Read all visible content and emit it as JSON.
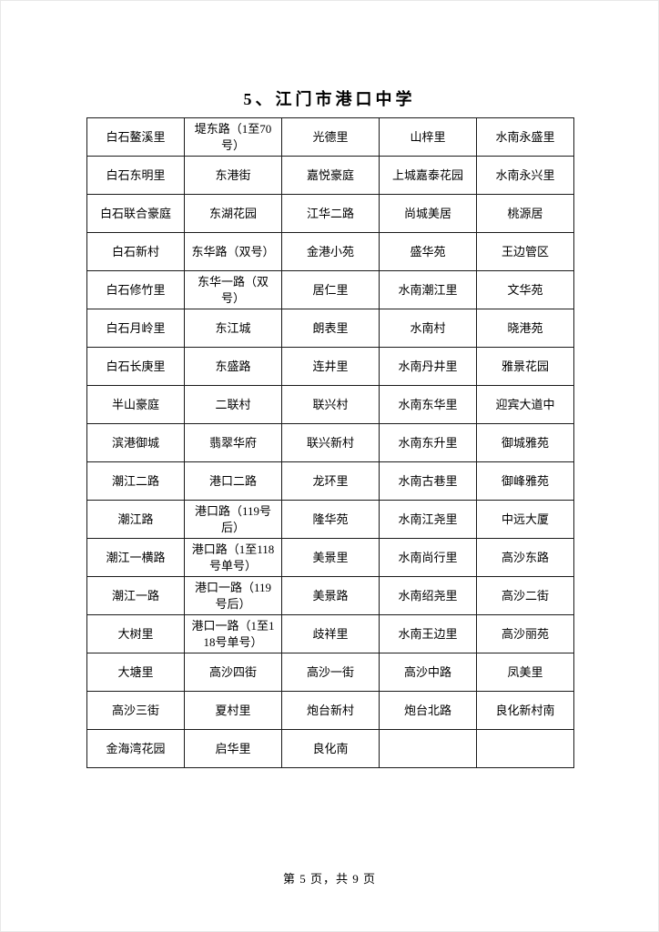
{
  "page": {
    "title": "5、江门市港口中学",
    "footer": "第 5 页，共 9 页"
  },
  "table": {
    "rows": [
      [
        "白石鳌溪里",
        "堤东路（1至70号）",
        "光德里",
        "山梓里",
        "水南永盛里"
      ],
      [
        "白石东明里",
        "东港街",
        "嘉悦豪庭",
        "上城嘉泰花园",
        "水南永兴里"
      ],
      [
        "白石联合豪庭",
        "东湖花园",
        "江华二路",
        "尚城美居",
        "桃源居"
      ],
      [
        "白石新村",
        "东华路（双号）",
        "金港小苑",
        "盛华苑",
        "王边管区"
      ],
      [
        "白石修竹里",
        "东华一路（双号）",
        "居仁里",
        "水南潮江里",
        "文华苑"
      ],
      [
        "白石月岭里",
        "东江城",
        "朗表里",
        "水南村",
        "晓港苑"
      ],
      [
        "白石长庚里",
        "东盛路",
        "连井里",
        "水南丹井里",
        "雅景花园"
      ],
      [
        "半山豪庭",
        "二联村",
        "联兴村",
        "水南东华里",
        "迎宾大道中"
      ],
      [
        "滨港御城",
        "翡翠华府",
        "联兴新村",
        "水南东升里",
        "御城雅苑"
      ],
      [
        "潮江二路",
        "港口二路",
        "龙环里",
        "水南古巷里",
        "御峰雅苑"
      ],
      [
        "潮江路",
        "港口路（119号后）",
        "隆华苑",
        "水南江尧里",
        "中远大厦"
      ],
      [
        "潮江一横路",
        "港口路（1至118号单号）",
        "美景里",
        "水南尚行里",
        "高沙东路"
      ],
      [
        "潮江一路",
        "港口一路（119号后）",
        "美景路",
        "水南绍尧里",
        "高沙二街"
      ],
      [
        "大树里",
        "港口一路（1至118号单号）",
        "歧祥里",
        "水南王边里",
        "高沙丽苑"
      ],
      [
        "大塘里",
        "高沙四街",
        "高沙一街",
        "高沙中路",
        "凤美里"
      ],
      [
        "高沙三街",
        "夏村里",
        "炮台新村",
        "炮台北路",
        "良化新村南"
      ],
      [
        "金海湾花园",
        "启华里",
        "良化南",
        "",
        ""
      ]
    ]
  }
}
